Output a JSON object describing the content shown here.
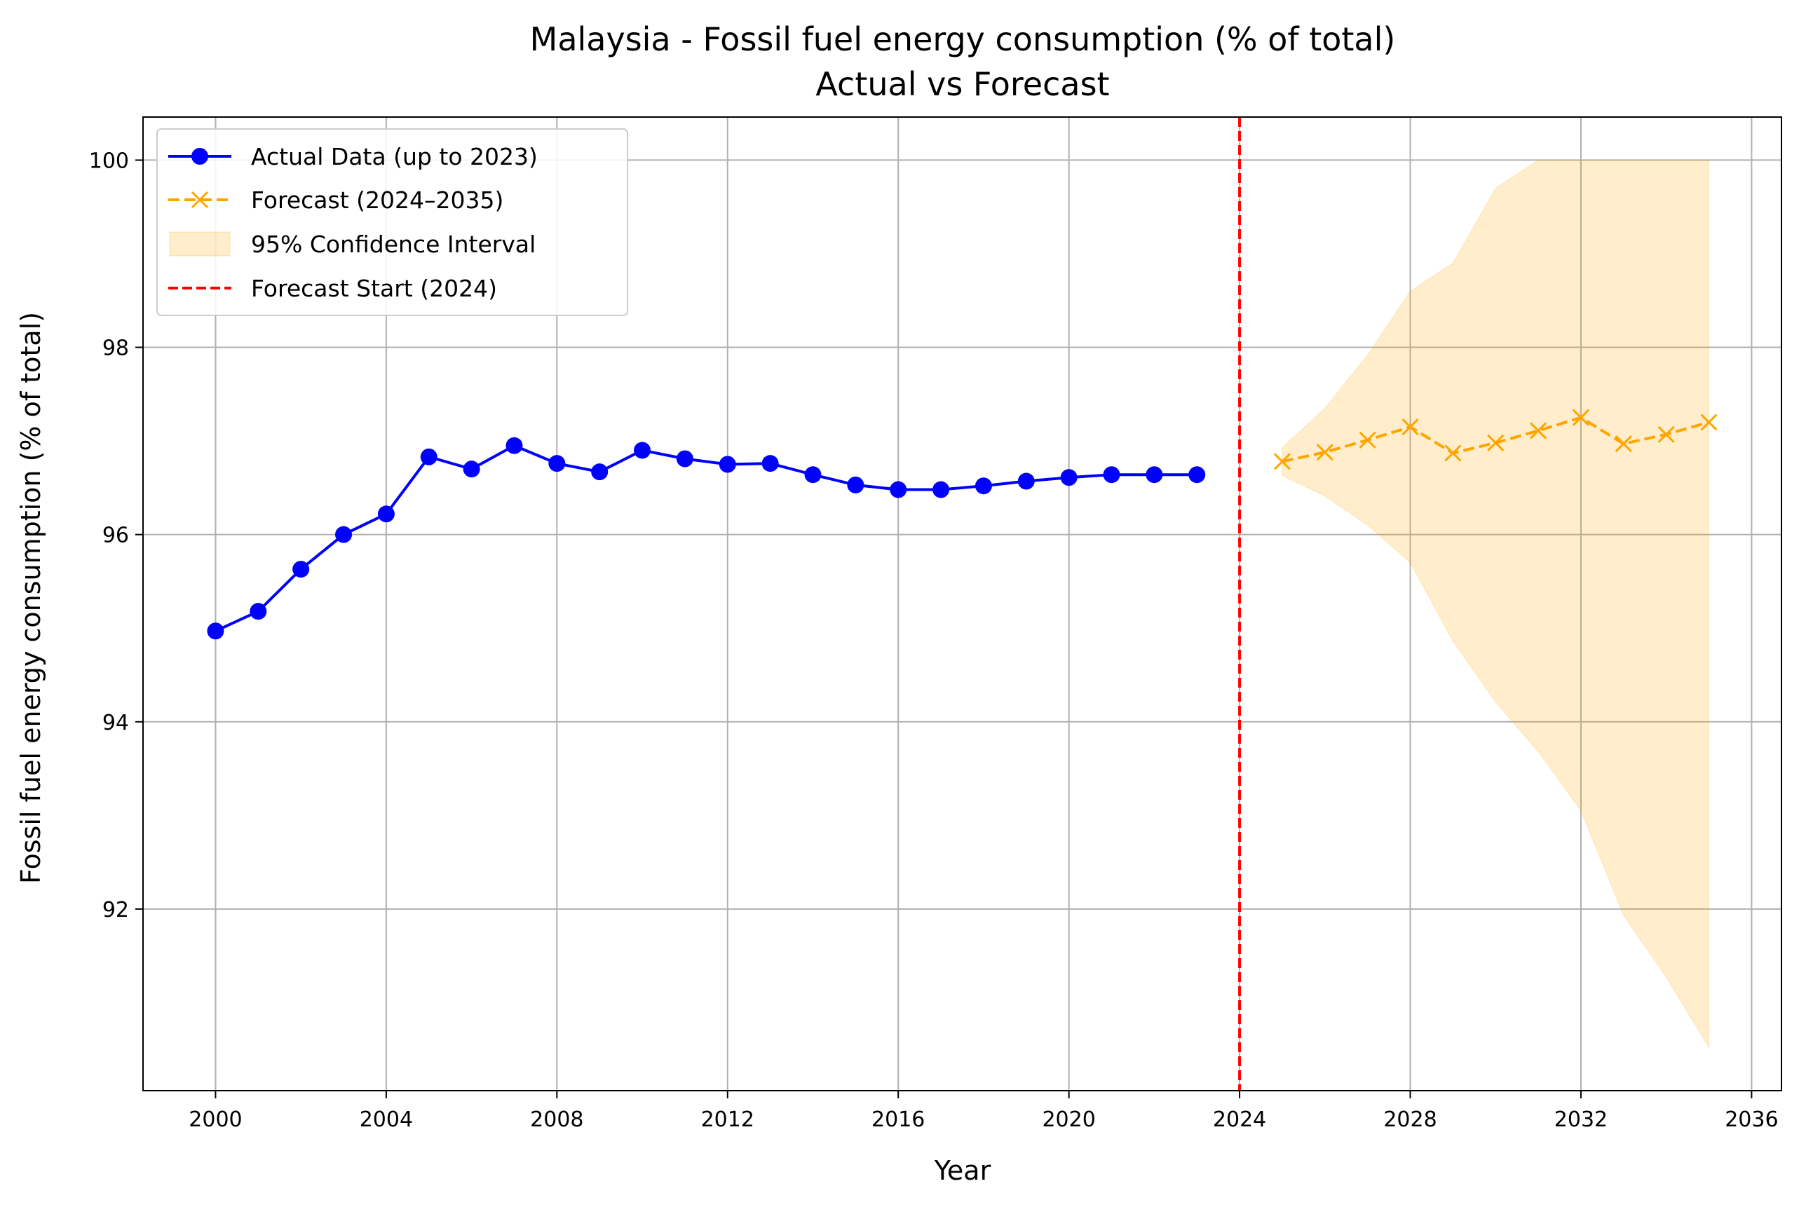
{
  "chart_data": {
    "type": "line",
    "title": "Malaysia - Fossil fuel energy consumption (% of total)",
    "subtitle": "Actual vs Forecast",
    "xlabel": "Year",
    "ylabel": "Fossil fuel energy consumption (% of total)",
    "xlim": [
      1998.3,
      2036.7
    ],
    "ylim": [
      90.06,
      100.46
    ],
    "x_ticks": [
      2000,
      2004,
      2008,
      2012,
      2016,
      2020,
      2024,
      2028,
      2032,
      2036
    ],
    "y_ticks": [
      92,
      94,
      96,
      98,
      100
    ],
    "grid": true,
    "legend_position": "top-left",
    "series": [
      {
        "name": "Actual Data (up to 2023)",
        "color": "#0000ff",
        "style": "solid",
        "marker": "circle",
        "x": [
          2000,
          2001,
          2002,
          2003,
          2004,
          2005,
          2006,
          2007,
          2008,
          2009,
          2010,
          2011,
          2012,
          2013,
          2014,
          2015,
          2016,
          2017,
          2018,
          2019,
          2020,
          2021,
          2022,
          2023
        ],
        "values": [
          94.97,
          95.18,
          95.63,
          96.0,
          96.22,
          96.83,
          96.7,
          96.95,
          96.76,
          96.67,
          96.9,
          96.81,
          96.75,
          96.76,
          96.64,
          96.53,
          96.48,
          96.48,
          96.52,
          96.57,
          96.61,
          96.64,
          96.64,
          96.64
        ]
      },
      {
        "name": "Forecast (2024–2035)",
        "color": "#ffa500",
        "style": "dashed",
        "marker": "x",
        "x": [
          2025,
          2026,
          2027,
          2028,
          2029,
          2030,
          2031,
          2032,
          2033,
          2034,
          2035
        ],
        "values": [
          96.78,
          96.88,
          97.01,
          97.15,
          96.87,
          96.98,
          97.11,
          97.25,
          96.97,
          97.07,
          97.2
        ]
      }
    ],
    "confidence_interval": {
      "name": "95% Confidence Interval",
      "color": "#ffa500",
      "opacity": 0.2,
      "x": [
        2025,
        2026,
        2027,
        2028,
        2029,
        2030,
        2031,
        2032,
        2033,
        2034,
        2035
      ],
      "lower": [
        96.63,
        96.41,
        96.1,
        95.7,
        94.86,
        94.21,
        93.68,
        93.05,
        91.93,
        91.27,
        90.52
      ],
      "upper": [
        96.93,
        97.35,
        97.92,
        98.6,
        98.9,
        99.7,
        100.0,
        100.0,
        100.0,
        100.0,
        100.0
      ]
    },
    "vertical_line": {
      "name": "Forecast Start (2024)",
      "x": 2024,
      "color": "#ff0000",
      "style": "dashed"
    }
  }
}
